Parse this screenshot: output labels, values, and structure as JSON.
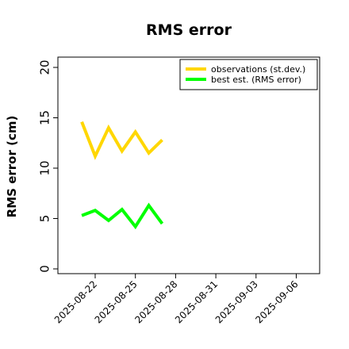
{
  "chart_data": {
    "type": "line",
    "title": "RMS error",
    "xlabel": "",
    "ylabel": "RMS error (cm)",
    "ylim": [
      0,
      20
    ],
    "yticks": [
      0,
      5,
      10,
      15,
      20
    ],
    "xticks": [
      {
        "label": "2025-08-22",
        "day": 22,
        "color": "#000000"
      },
      {
        "label": "2025-08-25",
        "day": 25,
        "color": "#000000"
      },
      {
        "label": "2025-08-28",
        "day": 28,
        "color": "#228B22"
      },
      {
        "label": "2025-08-31",
        "day": 31,
        "color": "#000000"
      },
      {
        "label": "2025-09-03",
        "day": 34,
        "color": "#000000"
      },
      {
        "label": "2025-09-06",
        "day": 37,
        "color": "#000000"
      }
    ],
    "xlim_days": [
      20,
      39
    ],
    "legend_position": "top-right",
    "grid": false,
    "series": [
      {
        "name": "observations (st.dev.)",
        "color": "#FFD700",
        "x": [
          "2025-08-21",
          "2025-08-22",
          "2025-08-23",
          "2025-08-24",
          "2025-08-25",
          "2025-08-26",
          "2025-08-27"
        ],
        "days": [
          21,
          22,
          23,
          24,
          25,
          26,
          27
        ],
        "values": [
          14.6,
          11.2,
          14.0,
          11.7,
          13.6,
          11.5,
          12.8
        ]
      },
      {
        "name": "best est. (RMS error)",
        "color": "#00FF00",
        "x": [
          "2025-08-21",
          "2025-08-22",
          "2025-08-23",
          "2025-08-24",
          "2025-08-25",
          "2025-08-26",
          "2025-08-27"
        ],
        "days": [
          21,
          22,
          23,
          24,
          25,
          26,
          27
        ],
        "values": [
          5.3,
          5.8,
          4.8,
          5.9,
          4.2,
          6.3,
          4.5
        ]
      }
    ]
  }
}
